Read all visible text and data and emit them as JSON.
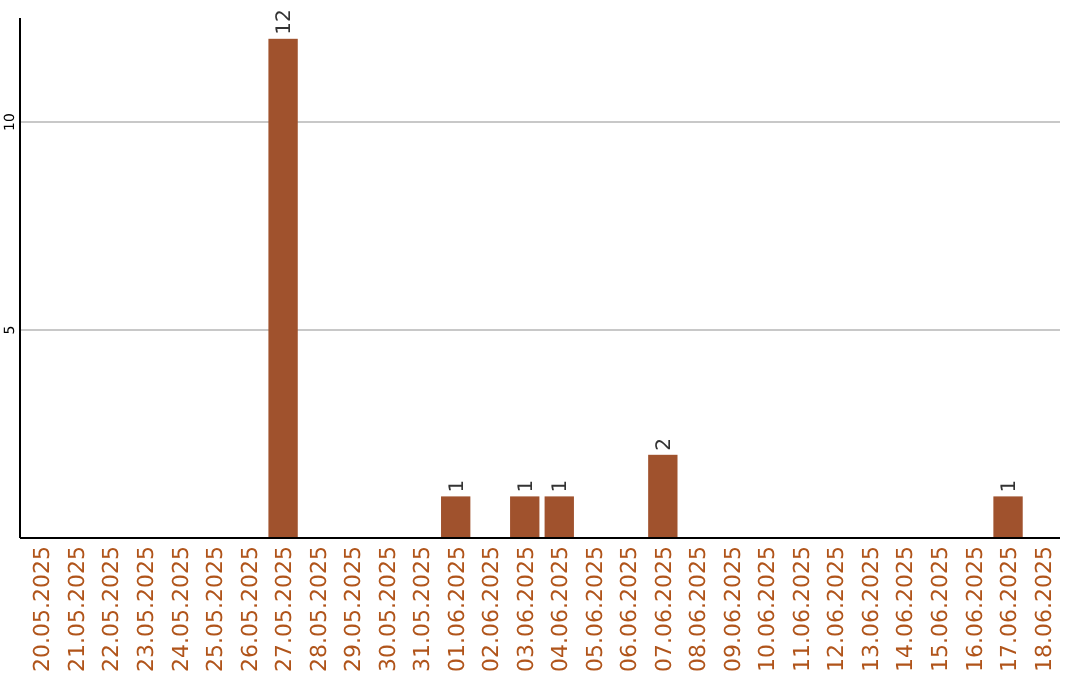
{
  "chart_data": {
    "type": "bar",
    "categories": [
      "20.05.2025",
      "21.05.2025",
      "22.05.2025",
      "23.05.2025",
      "24.05.2025",
      "25.05.2025",
      "26.05.2025",
      "27.05.2025",
      "28.05.2025",
      "29.05.2025",
      "30.05.2025",
      "31.05.2025",
      "01.06.2025",
      "02.06.2025",
      "03.06.2025",
      "04.06.2025",
      "05.06.2025",
      "06.06.2025",
      "07.06.2025",
      "08.06.2025",
      "09.06.2025",
      "10.06.2025",
      "11.06.2025",
      "12.06.2025",
      "13.06.2025",
      "14.06.2025",
      "15.06.2025",
      "16.06.2025",
      "17.06.2025",
      "18.06.2025"
    ],
    "values": [
      0,
      0,
      0,
      0,
      0,
      0,
      0,
      12,
      0,
      0,
      0,
      0,
      1,
      0,
      1,
      1,
      0,
      0,
      2,
      0,
      0,
      0,
      0,
      0,
      0,
      0,
      0,
      0,
      1,
      0
    ],
    "value_labels": [
      null,
      null,
      null,
      null,
      null,
      null,
      null,
      "12",
      null,
      null,
      null,
      null,
      "1",
      null,
      "1",
      "1",
      null,
      null,
      "2",
      null,
      null,
      null,
      null,
      null,
      null,
      null,
      null,
      null,
      "1",
      null
    ],
    "color": "#a0522d",
    "ylim": [
      0,
      12.5
    ],
    "yticks": [
      5,
      10
    ],
    "grid": "y"
  }
}
